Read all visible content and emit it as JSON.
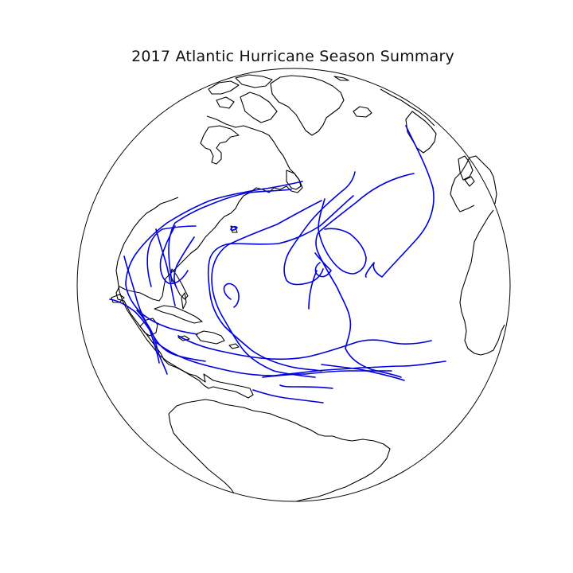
{
  "title": "2017 Atlantic Hurricane Season Summary",
  "colors": {
    "land_outline": "#000000",
    "globe_outline": "#000000",
    "storm_track": "#0000dd",
    "background": "#ffffff"
  },
  "map": {
    "projection": "orthographic",
    "region": "Atlantic Ocean",
    "storm_track_count": 25
  }
}
